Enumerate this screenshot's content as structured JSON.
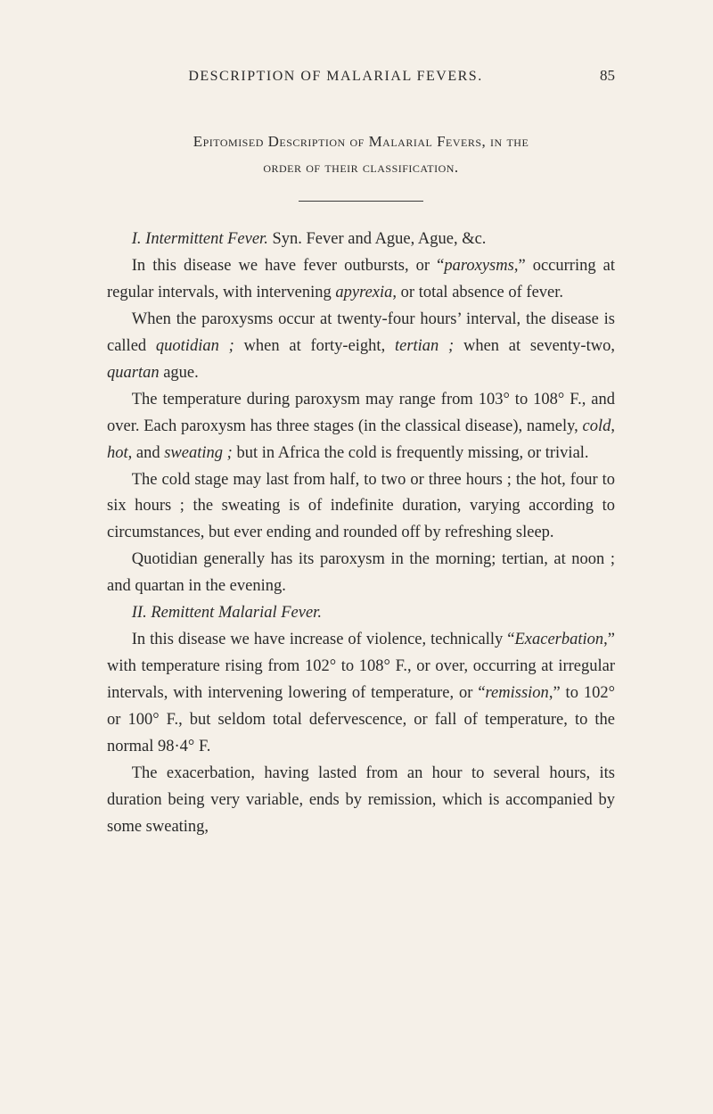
{
  "header": {
    "running_head": "DESCRIPTION OF MALARIAL FEVERS.",
    "page_number": "85"
  },
  "title": {
    "line1_pre": "Epitomised Description of Malarial Fevers, in the",
    "line2": "order of their classification."
  },
  "paragraphs": {
    "p1": "I. Intermittent Fever. Syn. Fever and Ague, Ague, &c.",
    "p2": "In this disease we have fever outbursts, or \"paroxysms,\" occurring at regular intervals, with intervening apyrexia, or total absence of fever.",
    "p3": "When the paroxysms occur at twenty-four hours' interval, the disease is called quotidian ; when at forty-eight, tertian ; when at seventy-two, quartan ague.",
    "p4": "The temperature during paroxysm may range from 103° to 108° F., and over. Each paroxysm has three stages (in the classical disease), namely, cold, hot, and sweating ; but in Africa the cold is frequently missing, or trivial.",
    "p5": "The cold stage may last from half, to two or three hours ; the hot, four to six hours ; the sweating is of indefinite duration, varying according to circumstances, but ever ending and rounded off by refreshing sleep.",
    "p6": "Quotidian generally has its paroxysm in the morning; tertian, at noon ; and quartan in the evening.",
    "p7": "II. Remittent Malarial Fever.",
    "p8": "In this disease we have increase of violence, technically \" Exacerbation,\" with temperature rising from 102° to 108° F., or over, occurring at irregular intervals, with intervening lowering of temperature, or \" remission,\" to 102° or 100° F., but seldom total defervescence, or fall of temperature, to the normal 98·4° F.",
    "p9": "The exacerbation, having lasted from an hour to several hours, its duration being very variable, ends by remission, which is accompanied by some sweating,"
  }
}
